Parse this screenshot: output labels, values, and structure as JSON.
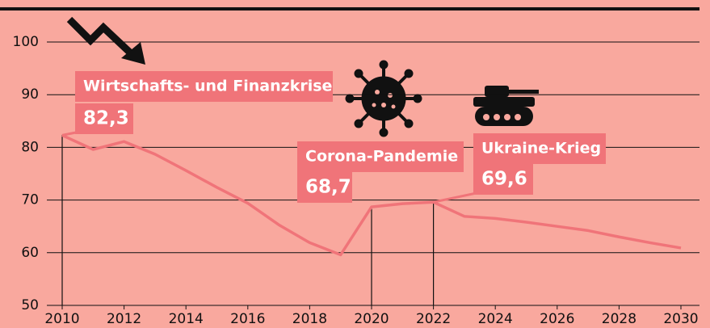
{
  "chart_data": {
    "type": "line",
    "x": [
      2010,
      2011,
      2012,
      2013,
      2014,
      2015,
      2016,
      2017,
      2018,
      2019,
      2020,
      2021,
      2022,
      2023,
      2024,
      2025,
      2026,
      2027,
      2028,
      2029,
      2030
    ],
    "series": [
      {
        "color": "#f07479",
        "values": [
          82.3,
          79.6,
          81.1,
          78.7,
          75.6,
          72.4,
          69.4,
          65.3,
          61.9,
          59.6,
          68.7,
          69.3,
          69.6,
          66.9,
          66.5,
          65.8,
          65.0,
          64.2,
          63.0,
          61.9,
          60.9
        ],
        "value_labels": [
          "82,3",
          null,
          null,
          null,
          null,
          null,
          null,
          null,
          null,
          null,
          "68,7",
          null,
          "69,6",
          null,
          null,
          null,
          null,
          null,
          null,
          null,
          null
        ]
      }
    ],
    "annotations": [
      {
        "text": "Wirtschafts- und Finanzkrise",
        "x": 2010
      },
      {
        "text": "Corona-Pandemie",
        "x": 2020
      },
      {
        "text": "Ukraine-Krieg",
        "x": 2022
      }
    ],
    "xlim": [
      2010,
      2030
    ],
    "xticks": [
      2010,
      2012,
      2014,
      2016,
      2018,
      2020,
      2022,
      2024,
      2026,
      2028,
      2030
    ],
    "ylim": [
      50,
      100
    ],
    "yticks": [
      50,
      60,
      70,
      80,
      90,
      100
    ],
    "grid": true
  }
}
